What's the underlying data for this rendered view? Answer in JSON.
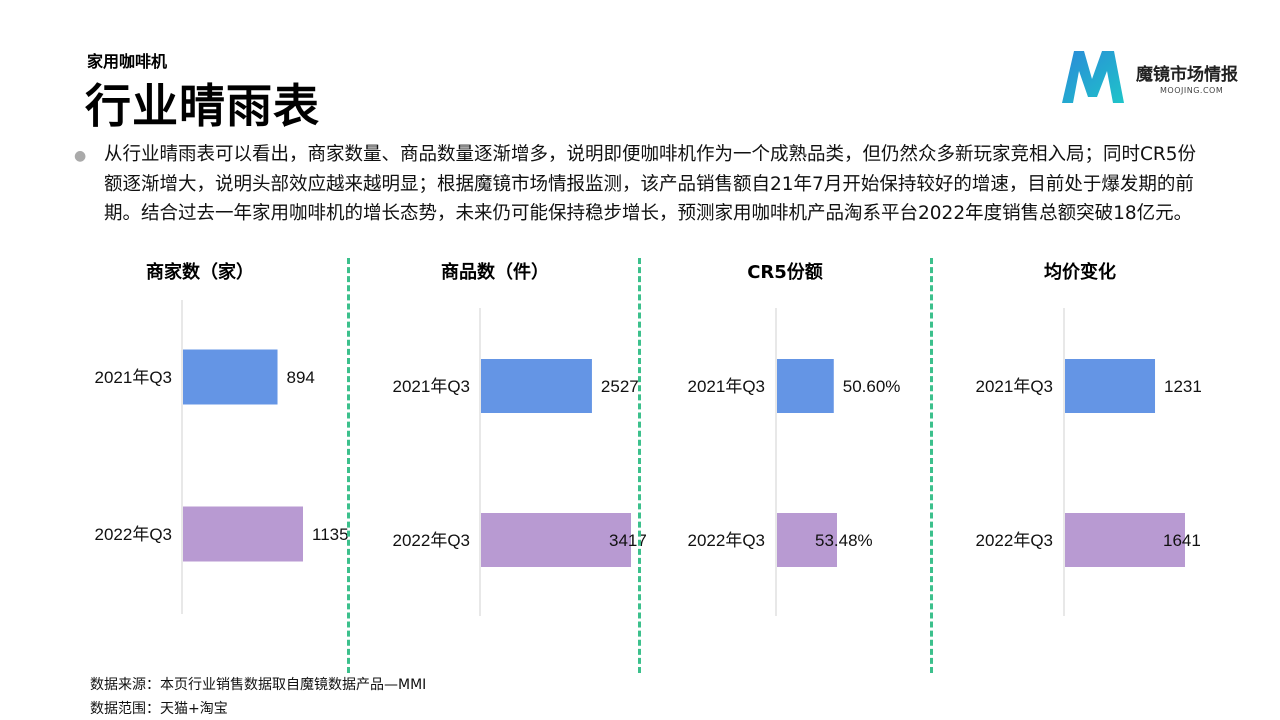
{
  "header": {
    "subtitle": "家用咖啡机",
    "title": "行业晴雨表"
  },
  "logo": {
    "name": "魔镜市场情报",
    "domain": "MOOJING.COM"
  },
  "description": "从行业晴雨表可以看出，商家数量、商品数量逐渐增多，说明即便咖啡机作为一个成熟品类，但仍然众多新玩家竞相入局；同时CR5份额逐渐增大，说明头部效应越来越明显；根据魔镜市场情报监测，该产品销售额自21年7月开始保持较好的增速，目前处于爆发期的前期。结合过去一年家用咖啡机的增长态势，未来仍可能保持稳步增长，预测家用咖啡机产品淘系平台2022年度销售总额突破18亿元。",
  "colors": {
    "bar_2021": "#6495e5",
    "bar_2022": "#b89ad2",
    "divider": "#3cc08c"
  },
  "chart_data": [
    {
      "type": "bar",
      "orientation": "horizontal",
      "title": "商家数（家）",
      "categories": [
        "2021年Q3",
        "2022年Q3"
      ],
      "values": [
        894,
        1135
      ],
      "labels": [
        "894",
        "1135"
      ]
    },
    {
      "type": "bar",
      "orientation": "horizontal",
      "title": "商品数（件）",
      "categories": [
        "2021年Q3",
        "2022年Q3"
      ],
      "values": [
        2527,
        3417
      ],
      "labels": [
        "2527",
        "3417"
      ]
    },
    {
      "type": "bar",
      "orientation": "horizontal",
      "title": "CR5份额",
      "categories": [
        "2021年Q3",
        "2022年Q3"
      ],
      "values": [
        50.6,
        53.48
      ],
      "labels": [
        "50.60%",
        "53.48%"
      ]
    },
    {
      "type": "bar",
      "orientation": "horizontal",
      "title": "均价变化",
      "categories": [
        "2021年Q3",
        "2022年Q3"
      ],
      "values": [
        1231,
        1641
      ],
      "labels": [
        "1231",
        "1641"
      ]
    }
  ],
  "footer": {
    "source": "数据来源：本页行业销售数据取自魔镜数据产品—MMI",
    "scope": "数据范围：天猫+淘宝"
  }
}
